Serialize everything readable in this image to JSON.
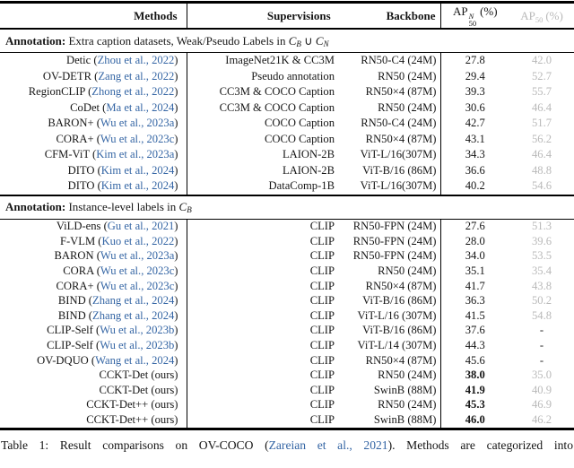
{
  "colors": {
    "link_blue": "#3465a4",
    "muted_gray": "#b9b9b9",
    "rule_black": "#000000"
  },
  "table": {
    "headers": {
      "methods": "Methods",
      "supervisions": "Supervisions",
      "backbone": "Backbone",
      "ap_novel": {
        "base": "AP",
        "sup": "N",
        "sub": "50",
        "suffix": "(%)"
      },
      "ap_all": {
        "base": "AP",
        "sub": "50",
        "suffix": "(%)"
      }
    },
    "sections": [
      {
        "annotation_bold": "Annotation:",
        "annotation_text": " Extra caption datasets, Weak/Pseudo Labels in ",
        "annotation_math": [
          {
            "t": "C"
          },
          {
            "t": "B",
            "sub": true
          },
          {
            "t": " ∪ ",
            "plain": true
          },
          {
            "t": "C"
          },
          {
            "t": "N",
            "sub": true
          }
        ],
        "rows": [
          {
            "pre": "Detic (",
            "cite": "Zhou et al., 2022",
            "post": ")",
            "supervision": "ImageNet21K & CC3M",
            "backbone": "RN50-C4 (24M)",
            "ap_novel": "27.8",
            "ap_all": "42.0"
          },
          {
            "pre": "OV-DETR (",
            "cite": "Zang et al., 2022",
            "post": ")",
            "supervision": "Pseudo annotation",
            "backbone": "RN50 (24M)",
            "ap_novel": "29.4",
            "ap_all": "52.7"
          },
          {
            "pre": "RegionCLIP (",
            "cite": "Zhong et al., 2022",
            "post": ")",
            "supervision": "CC3M & COCO Caption",
            "backbone": "RN50×4 (87M)",
            "ap_novel": "39.3",
            "ap_all": "55.7"
          },
          {
            "pre": "CoDet (",
            "cite": "Ma et al., 2024",
            "post": ")",
            "supervision": "CC3M & COCO Caption",
            "backbone": "RN50 (24M)",
            "ap_novel": "30.6",
            "ap_all": "46.4"
          },
          {
            "pre": "BARON+ (",
            "cite": "Wu et al., 2023a",
            "post": ")",
            "supervision": "COCO Caption",
            "backbone": "RN50-C4 (24M)",
            "ap_novel": "42.7",
            "ap_all": "51.7"
          },
          {
            "pre": "CORA+ (",
            "cite": "Wu et al., 2023c",
            "post": ")",
            "supervision": "COCO Caption",
            "backbone": "RN50×4 (87M)",
            "ap_novel": "43.1",
            "ap_all": "56.2"
          },
          {
            "pre": "CFM-ViT (",
            "cite": "Kim et al., 2023a",
            "post": ")",
            "supervision": "LAION-2B",
            "backbone": "ViT-L/16(307M)",
            "ap_novel": "34.3",
            "ap_all": "46.4"
          },
          {
            "pre": "DITO (",
            "cite": "Kim et al., 2024",
            "post": ")",
            "supervision": "LAION-2B",
            "backbone": "ViT-B/16 (86M)",
            "ap_novel": "36.6",
            "ap_all": "48.8"
          },
          {
            "pre": "DITO (",
            "cite": "Kim et al., 2024",
            "post": ")",
            "supervision": "DataComp-1B",
            "backbone": "ViT-L/16(307M)",
            "ap_novel": "40.2",
            "ap_all": "54.6"
          }
        ]
      },
      {
        "annotation_bold": "Annotation:",
        "annotation_text": " Instance-level labels in ",
        "annotation_math": [
          {
            "t": "C"
          },
          {
            "t": "B",
            "sub": true
          }
        ],
        "rows": [
          {
            "pre": "ViLD-ens (",
            "cite": "Gu et al., 2021",
            "post": ")",
            "supervision": "CLIP",
            "backbone": "RN50-FPN (24M)",
            "ap_novel": "27.6",
            "ap_all": "51.3"
          },
          {
            "pre": "F-VLM (",
            "cite": "Kuo et al., 2022",
            "post": ")",
            "supervision": "CLIP",
            "backbone": "RN50-FPN (24M)",
            "ap_novel": "28.0",
            "ap_all": "39.6"
          },
          {
            "pre": "BARON (",
            "cite": "Wu et al., 2023a",
            "post": ")",
            "supervision": "CLIP",
            "backbone": "RN50-FPN (24M)",
            "ap_novel": "34.0",
            "ap_all": "53.5"
          },
          {
            "pre": "CORA (",
            "cite": "Wu et al., 2023c",
            "post": ")",
            "supervision": "CLIP",
            "backbone": "RN50 (24M)",
            "ap_novel": "35.1",
            "ap_all": "35.4"
          },
          {
            "pre": "CORA+ (",
            "cite": "Wu et al., 2023c",
            "post": ")",
            "supervision": "CLIP",
            "backbone": "RN50×4 (87M)",
            "ap_novel": "41.7",
            "ap_all": "43.8"
          },
          {
            "pre": "BIND (",
            "cite": "Zhang et al., 2024",
            "post": ")",
            "supervision": "CLIP",
            "backbone": "ViT-B/16 (86M)",
            "ap_novel": "36.3",
            "ap_all": "50.2"
          },
          {
            "pre": "BIND (",
            "cite": "Zhang et al., 2024",
            "post": ")",
            "supervision": "CLIP",
            "backbone": "ViT-L/16 (307M)",
            "ap_novel": "41.5",
            "ap_all": "54.8"
          },
          {
            "pre": "CLIP-Self (",
            "cite": "Wu et al., 2023b",
            "post": ")",
            "supervision": "CLIP",
            "backbone": "ViT-B/16 (86M)",
            "ap_novel": "37.6",
            "ap_all": "-"
          },
          {
            "pre": "CLIP-Self (",
            "cite": "Wu et al., 2023b",
            "post": ")",
            "supervision": "CLIP",
            "backbone": "ViT-L/14 (307M)",
            "ap_novel": "44.3",
            "ap_all": "-"
          },
          {
            "pre": "OV-DQUO (",
            "cite": "Wang et al., 2024",
            "post": ")",
            "supervision": "CLIP",
            "backbone": "RN50×4 (87M)",
            "ap_novel": "45.6",
            "ap_all": "-"
          },
          {
            "pre": "CCKT-Det (ours)",
            "cite": null,
            "post": "",
            "supervision": "CLIP",
            "backbone": "RN50 (24M)",
            "ap_novel": "38.0",
            "bold": true,
            "ap_all": "35.0"
          },
          {
            "pre": "CCKT-Det (ours)",
            "cite": null,
            "post": "",
            "supervision": "CLIP",
            "backbone": "SwinB (88M)",
            "ap_novel": "41.9",
            "bold": true,
            "ap_all": "40.9"
          },
          {
            "pre": "CCKT-Det++ (ours)",
            "cite": null,
            "post": "",
            "supervision": "CLIP",
            "backbone": "RN50 (24M)",
            "ap_novel": "45.3",
            "bold": true,
            "ap_all": "46.9"
          },
          {
            "pre": "CCKT-Det++ (ours)",
            "cite": null,
            "post": "",
            "supervision": "CLIP",
            "backbone": "SwinB (88M)",
            "ap_novel": "46.0",
            "bold": true,
            "ap_all": "46.2"
          }
        ]
      }
    ]
  },
  "caption": {
    "prefix": "Table 1:  Result comparisons on OV-COCO (",
    "cite": "Zareian et al., 2021",
    "suffix": ").  Methods are categorized into"
  }
}
